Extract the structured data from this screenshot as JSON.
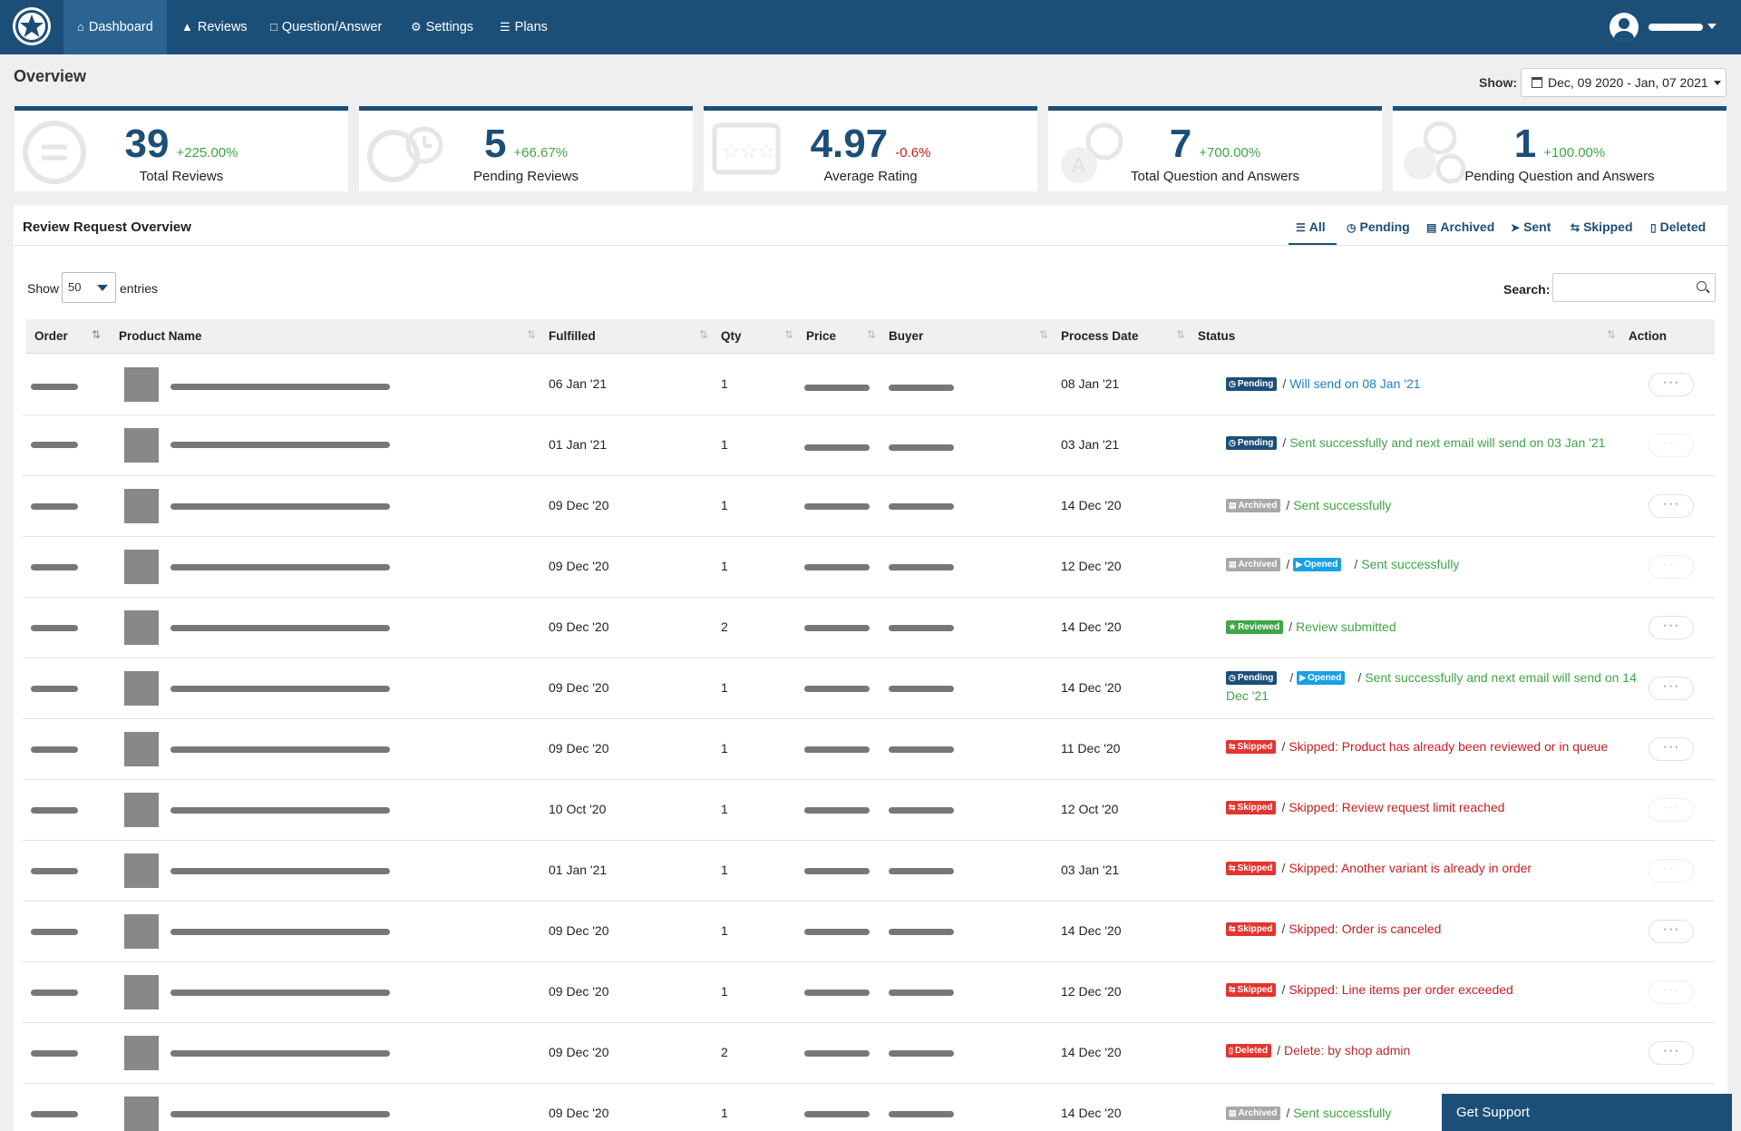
{
  "nav": {
    "items": [
      {
        "label": "Dashboard",
        "icon": "home-icon"
      },
      {
        "label": "Reviews",
        "icon": "thumbs-up-icon"
      },
      {
        "label": "Question/Answer",
        "icon": "comments-icon"
      },
      {
        "label": "Settings",
        "icon": "gear-icon"
      },
      {
        "label": "Plans",
        "icon": "list-icon"
      }
    ]
  },
  "header": {
    "title": "Overview",
    "show_label": "Show:",
    "date_range": "Dec, 09 2020 - Jan, 07 2021"
  },
  "stats": [
    {
      "value": "39",
      "change": "+225.00%",
      "label": "Total Reviews",
      "trend": "up"
    },
    {
      "value": "5",
      "change": "+66.67%",
      "label": "Pending Reviews",
      "trend": "up"
    },
    {
      "value": "4.97",
      "change": "-0.6%",
      "label": "Average Rating",
      "trend": "down"
    },
    {
      "value": "7",
      "change": "+700.00%",
      "label": "Total Question and Answers",
      "trend": "up"
    },
    {
      "value": "1",
      "change": "+100.00%",
      "label": "Pending Question and Answers",
      "trend": "up"
    }
  ],
  "panel": {
    "title": "Review Request Overview",
    "tabs": [
      "All",
      "Pending",
      "Archived",
      "Sent",
      "Skipped",
      "Deleted"
    ],
    "active_tab": "All"
  },
  "table": {
    "show_label": "Show",
    "entries_value": "50",
    "entries_label": "entries",
    "search_label": "Search:",
    "search_value": "",
    "columns": [
      "Order",
      "Product Name",
      "Fulfilled",
      "Qty",
      "Price",
      "Buyer",
      "Process Date",
      "Status",
      "Action"
    ],
    "rows": [
      {
        "fulfilled": "06 Jan '21",
        "qty": "1",
        "process_date": "08 Jan '21",
        "badges": [
          "Pending"
        ],
        "status_text": "Will send on 08 Jan '21"
      },
      {
        "fulfilled": "01 Jan '21",
        "qty": "1",
        "process_date": "03 Jan '21",
        "badges": [
          "Pending"
        ],
        "status_text": "Sent successfully and next email will send on 03 Jan '21"
      },
      {
        "fulfilled": "09 Dec '20",
        "qty": "1",
        "process_date": "14 Dec '20",
        "badges": [
          "Archived"
        ],
        "status_text": "Sent successfully"
      },
      {
        "fulfilled": "09 Dec '20",
        "qty": "1",
        "process_date": "12 Dec '20",
        "badges": [
          "Archived",
          "Opened"
        ],
        "status_text": "Sent successfully"
      },
      {
        "fulfilled": "09 Dec '20",
        "qty": "2",
        "process_date": "14 Dec '20",
        "badges": [
          "Reviewed"
        ],
        "status_text": "Review submitted"
      },
      {
        "fulfilled": "09 Dec '20",
        "qty": "1",
        "process_date": "14 Dec '20",
        "badges": [
          "Pending",
          "Opened"
        ],
        "status_text": "Sent successfully and next email will send on 14 Dec '21"
      },
      {
        "fulfilled": "09 Dec '20",
        "qty": "1",
        "process_date": "11 Dec '20",
        "badges": [
          "Skipped"
        ],
        "status_text": "Skipped: Product has already been reviewed or in queue"
      },
      {
        "fulfilled": "10 Oct '20",
        "qty": "1",
        "process_date": "12 Oct '20",
        "badges": [
          "Skipped"
        ],
        "status_text": "Skipped: Review request limit reached"
      },
      {
        "fulfilled": "01 Jan '21",
        "qty": "1",
        "process_date": "03 Jan '21",
        "badges": [
          "Skipped"
        ],
        "status_text": "Skipped: Another variant is already in order"
      },
      {
        "fulfilled": "09 Dec '20",
        "qty": "1",
        "process_date": "14 Dec '20",
        "badges": [
          "Skipped"
        ],
        "status_text": "Skipped: Order is canceled"
      },
      {
        "fulfilled": "09 Dec '20",
        "qty": "1",
        "process_date": "12 Dec '20",
        "badges": [
          "Skipped"
        ],
        "status_text": "Skipped: Line items per order exceeded"
      },
      {
        "fulfilled": "09 Dec '20",
        "qty": "2",
        "process_date": "14 Dec '20",
        "badges": [
          "Deleted"
        ],
        "status_text": "Delete: by shop admin"
      },
      {
        "fulfilled": "09 Dec '20",
        "qty": "1",
        "process_date": "14 Dec '20",
        "badges": [
          "Archived"
        ],
        "status_text": "Sent successfully"
      }
    ]
  },
  "support": {
    "label": "Get Support"
  },
  "colors": {
    "brand": "#1c4f78",
    "green": "#3fa546",
    "red": "#e3342f",
    "blue": "#1aa0e6"
  }
}
